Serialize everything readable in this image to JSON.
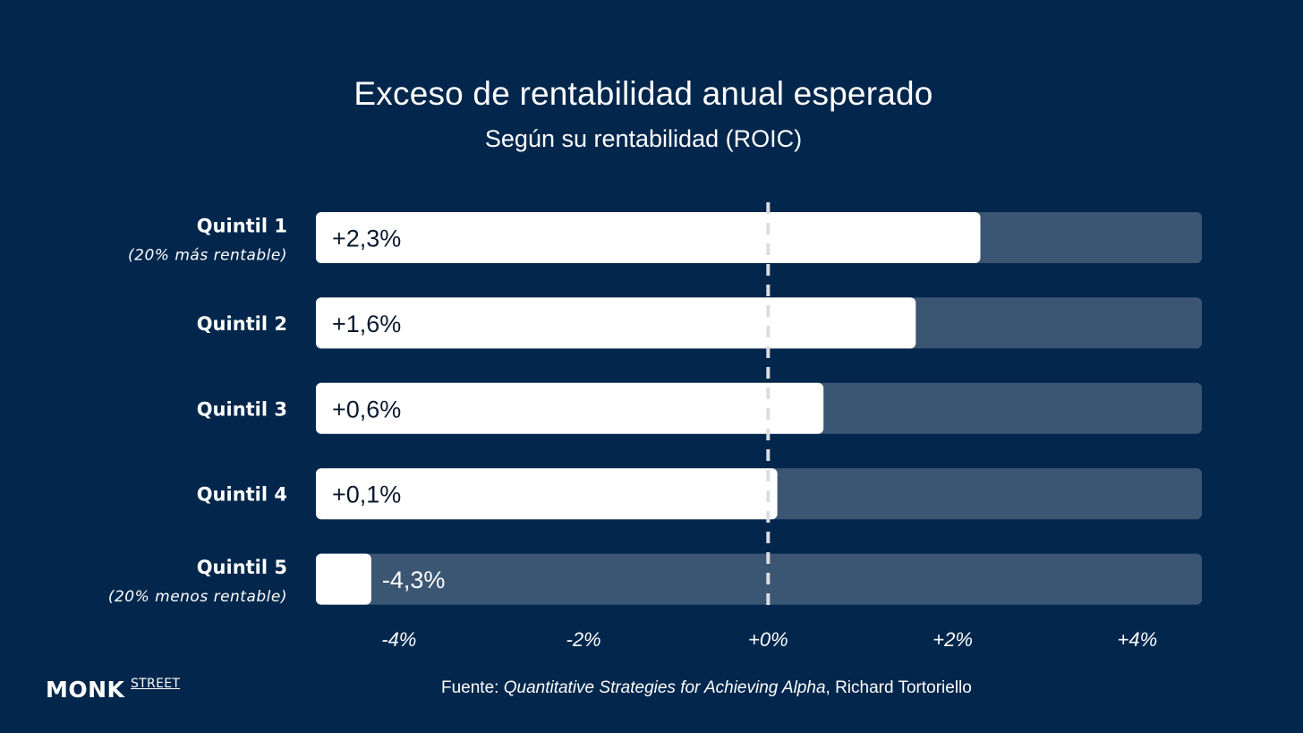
{
  "chart_data": {
    "type": "bar",
    "orientation": "horizontal",
    "title": "Exceso de rentabilidad anual esperado",
    "subtitle": "Según su rentabilidad (ROIC)",
    "categories": [
      "Quintil 1",
      "Quintil 2",
      "Quintil 3",
      "Quintil 4",
      "Quintil 5"
    ],
    "category_notes": [
      "(20% más rentable)",
      "",
      "",
      "",
      "(20% menos rentable)"
    ],
    "values": [
      2.3,
      1.6,
      0.6,
      0.1,
      -4.3
    ],
    "value_labels": [
      "+2,3%",
      "+1,6%",
      "+0,6%",
      "+0,1%",
      "-4,3%"
    ],
    "xlim": [
      -4.9,
      4.7
    ],
    "xticks": [
      -4,
      -2,
      0,
      2,
      4
    ],
    "xtick_labels": [
      "-4%",
      "-2%",
      "+0%",
      "+2%",
      "+4%"
    ],
    "reference_line": 0,
    "colors": {
      "background": "#03274c",
      "bar": "#ffffff",
      "track": "#3b5672",
      "reference_line": "#d9dde3",
      "text": "#ffffff",
      "value_text_on_bar": "#0a1a2e"
    }
  },
  "footer": {
    "logo_main": "MONK",
    "logo_sup": "STREET",
    "source_prefix": "Fuente: ",
    "source_book": "Quantitative Strategies for Achieving Alpha",
    "source_suffix": ", Richard Tortoriello"
  }
}
